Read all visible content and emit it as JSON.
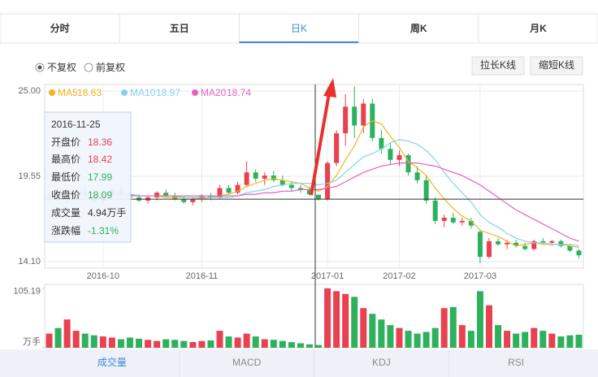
{
  "tabs": [
    "分时",
    "五日",
    "日K",
    "周K",
    "月K"
  ],
  "options": [
    "不复权",
    "前复权"
  ],
  "buttons": [
    "拉长K线",
    "缩短K线"
  ],
  "bottom_tabs": [
    "成交量",
    "MACD",
    "KDJ",
    "RSI"
  ],
  "tooltip": {
    "date": "2016-11-25",
    "labels": [
      "开盘价",
      "最高价",
      "最低价",
      "收盘价",
      "成交量",
      "涨跌幅"
    ],
    "open": 18.36,
    "high": 18.42,
    "low": 17.99,
    "close": 18.09,
    "volume": "4.94万手",
    "change": "-1.31%"
  },
  "chart_data": {
    "type": "candlestick",
    "categories": [
      null,
      null,
      null,
      null,
      null,
      null,
      "2016-10",
      null,
      null,
      null,
      null,
      null,
      null,
      null,
      null,
      null,
      null,
      "2016-11",
      null,
      null,
      null,
      null,
      null,
      null,
      null,
      null,
      null,
      null,
      null,
      null,
      null,
      "2017-01",
      null,
      null,
      null,
      null,
      null,
      null,
      null,
      "2017-02",
      null,
      null,
      null,
      null,
      null,
      null,
      null,
      null,
      "2017-03",
      null,
      null,
      null,
      null,
      null,
      null,
      null,
      null,
      null,
      null,
      null
    ],
    "open": [
      18.2,
      18.3,
      18.1,
      18.2,
      18.5,
      18.3,
      18.0,
      18.3,
      18.7,
      18.4,
      18.2,
      18.0,
      18.2,
      18.5,
      18.3,
      18.1,
      17.9,
      18.1,
      18.3,
      18.2,
      18.8,
      18.5,
      19.0,
      19.8,
      19.4,
      19.6,
      19.3,
      19.0,
      18.8,
      18.7,
      18.36,
      18.1,
      20.4,
      22.3,
      24.0,
      22.8,
      24.2,
      22.0,
      21.3,
      20.6,
      20.9,
      19.8,
      19.3,
      18.0,
      16.7,
      16.9,
      16.6,
      16.7,
      16.0,
      14.4,
      15.4,
      15.2,
      15.3,
      15.1,
      14.9,
      15.4,
      15.3,
      15.4,
      15.1,
      14.8
    ],
    "high": [
      18.5,
      18.6,
      18.4,
      18.7,
      18.8,
      18.5,
      18.4,
      18.9,
      18.9,
      18.6,
      18.4,
      18.3,
      18.6,
      18.7,
      18.5,
      18.3,
      18.2,
      18.4,
      18.5,
      19.0,
      19.0,
      19.2,
      20.5,
      20.0,
      19.8,
      19.9,
      19.6,
      19.2,
      19.0,
      18.9,
      18.42,
      20.5,
      22.5,
      24.8,
      25.3,
      24.5,
      24.5,
      22.5,
      21.7,
      21.2,
      21.0,
      20.2,
      19.6,
      18.2,
      17.1,
      17.2,
      16.9,
      16.9,
      16.1,
      15.6,
      15.6,
      15.5,
      15.5,
      15.3,
      15.5,
      15.6,
      15.5,
      15.5,
      15.2,
      14.9
    ],
    "low": [
      17.9,
      18.0,
      17.8,
      18.0,
      18.2,
      17.9,
      17.8,
      18.1,
      18.3,
      18.1,
      17.9,
      17.8,
      18.0,
      18.2,
      18.0,
      17.8,
      17.7,
      17.9,
      18.0,
      18.1,
      18.4,
      18.4,
      18.9,
      19.2,
      19.0,
      19.2,
      18.9,
      18.6,
      18.5,
      18.3,
      17.99,
      18.0,
      20.2,
      21.5,
      22.0,
      22.3,
      21.8,
      21.0,
      20.3,
      20.2,
      19.6,
      19.1,
      17.8,
      16.5,
      16.3,
      16.5,
      16.4,
      16.2,
      14.0,
      14.3,
      15.1,
      14.9,
      15.0,
      14.8,
      14.8,
      15.2,
      15.1,
      15.0,
      14.7,
      14.3
    ],
    "close": [
      18.3,
      18.1,
      18.2,
      18.5,
      18.3,
      18.0,
      18.3,
      18.7,
      18.4,
      18.2,
      18.0,
      18.2,
      18.5,
      18.3,
      18.1,
      17.9,
      18.1,
      18.3,
      18.2,
      18.8,
      18.5,
      19.0,
      19.8,
      19.4,
      19.6,
      19.3,
      19.0,
      18.8,
      18.7,
      18.4,
      18.09,
      20.4,
      22.3,
      24.0,
      22.8,
      24.2,
      22.0,
      21.3,
      20.6,
      20.9,
      19.8,
      19.3,
      18.0,
      16.7,
      16.9,
      16.6,
      16.7,
      16.4,
      14.4,
      15.4,
      15.2,
      15.3,
      15.1,
      14.9,
      15.4,
      15.3,
      15.4,
      15.1,
      14.8,
      14.5
    ],
    "up_color": "#e8414f",
    "down_color": "#2eb15d",
    "series": [
      {
        "name": "MA5",
        "legend_value": 18.63,
        "color": "#f5b31c",
        "values": [
          18.2,
          18.2,
          18.2,
          18.3,
          18.3,
          18.3,
          18.3,
          18.4,
          18.3,
          18.3,
          18.3,
          18.3,
          18.3,
          18.2,
          18.2,
          18.2,
          18.2,
          18.1,
          18.2,
          18.3,
          18.4,
          18.6,
          18.9,
          19.1,
          19.3,
          19.4,
          19.3,
          19.2,
          19.1,
          18.8,
          18.6,
          18.9,
          19.6,
          20.6,
          21.5,
          22.7,
          23.1,
          22.9,
          22.1,
          21.4,
          20.5,
          20.1,
          19.6,
          18.8,
          18.1,
          17.5,
          17.0,
          16.7,
          16.1,
          15.9,
          15.7,
          15.4,
          15.1,
          15.2,
          15.3,
          15.2,
          15.2,
          15.2,
          15.1,
          15.0
        ]
      },
      {
        "name": "MA10",
        "legend_value": 18.97,
        "color": "#7fd3ee",
        "values": [
          18.3,
          18.3,
          18.3,
          18.3,
          18.3,
          18.3,
          18.3,
          18.3,
          18.3,
          18.3,
          18.3,
          18.3,
          18.3,
          18.3,
          18.3,
          18.2,
          18.2,
          18.2,
          18.2,
          18.2,
          18.2,
          18.3,
          18.5,
          18.6,
          18.7,
          18.9,
          19.0,
          19.1,
          19.1,
          19.1,
          19.0,
          19.1,
          19.3,
          19.8,
          20.3,
          20.8,
          21.0,
          21.3,
          21.7,
          21.9,
          21.8,
          21.6,
          21.2,
          20.6,
          19.8,
          19.1,
          18.5,
          17.9,
          17.1,
          16.6,
          16.3,
          15.9,
          15.6,
          15.4,
          15.3,
          15.3,
          15.2,
          15.2,
          15.2,
          15.1
        ]
      },
      {
        "name": "MA20",
        "legend_value": 18.74,
        "color": "#e85fc0",
        "values": [
          18.4,
          18.4,
          18.4,
          18.5,
          18.5,
          18.4,
          18.4,
          18.4,
          18.4,
          18.4,
          18.3,
          18.3,
          18.3,
          18.3,
          18.3,
          18.3,
          18.3,
          18.3,
          18.3,
          18.3,
          18.3,
          18.3,
          18.4,
          18.4,
          18.5,
          18.5,
          18.6,
          18.6,
          18.7,
          18.7,
          18.7,
          18.8,
          18.9,
          19.2,
          19.5,
          19.8,
          20.0,
          20.2,
          20.3,
          20.4,
          20.4,
          20.4,
          20.3,
          20.2,
          20.0,
          19.8,
          19.6,
          19.3,
          19.0,
          18.6,
          18.2,
          17.8,
          17.4,
          17.1,
          16.8,
          16.5,
          16.2,
          15.9,
          15.6,
          15.4
        ]
      }
    ],
    "ylim": [
      13.68,
      25.42
    ],
    "yticks": [
      {
        "value": 25,
        "label": "25.00"
      },
      19.55,
      {
        "value": 14.1,
        "label": "14.10"
      }
    ],
    "volume": [
      25,
      35,
      50,
      30,
      25,
      22,
      20,
      18,
      15,
      18,
      16,
      14,
      12,
      15,
      14,
      12,
      10,
      12,
      13,
      30,
      20,
      18,
      25,
      20,
      15,
      14,
      12,
      10,
      8,
      6,
      4.94,
      105,
      100,
      95,
      90,
      70,
      60,
      50,
      40,
      35,
      30,
      25,
      28,
      35,
      70,
      72,
      40,
      30,
      100,
      75,
      40,
      30,
      25,
      28,
      35,
      30,
      25,
      20,
      22,
      23
    ],
    "vlim": [
      0,
      112
    ],
    "vticks": [
      105.19,
      {
        "value": 0,
        "label": "万手"
      }
    ],
    "grid": true
  }
}
